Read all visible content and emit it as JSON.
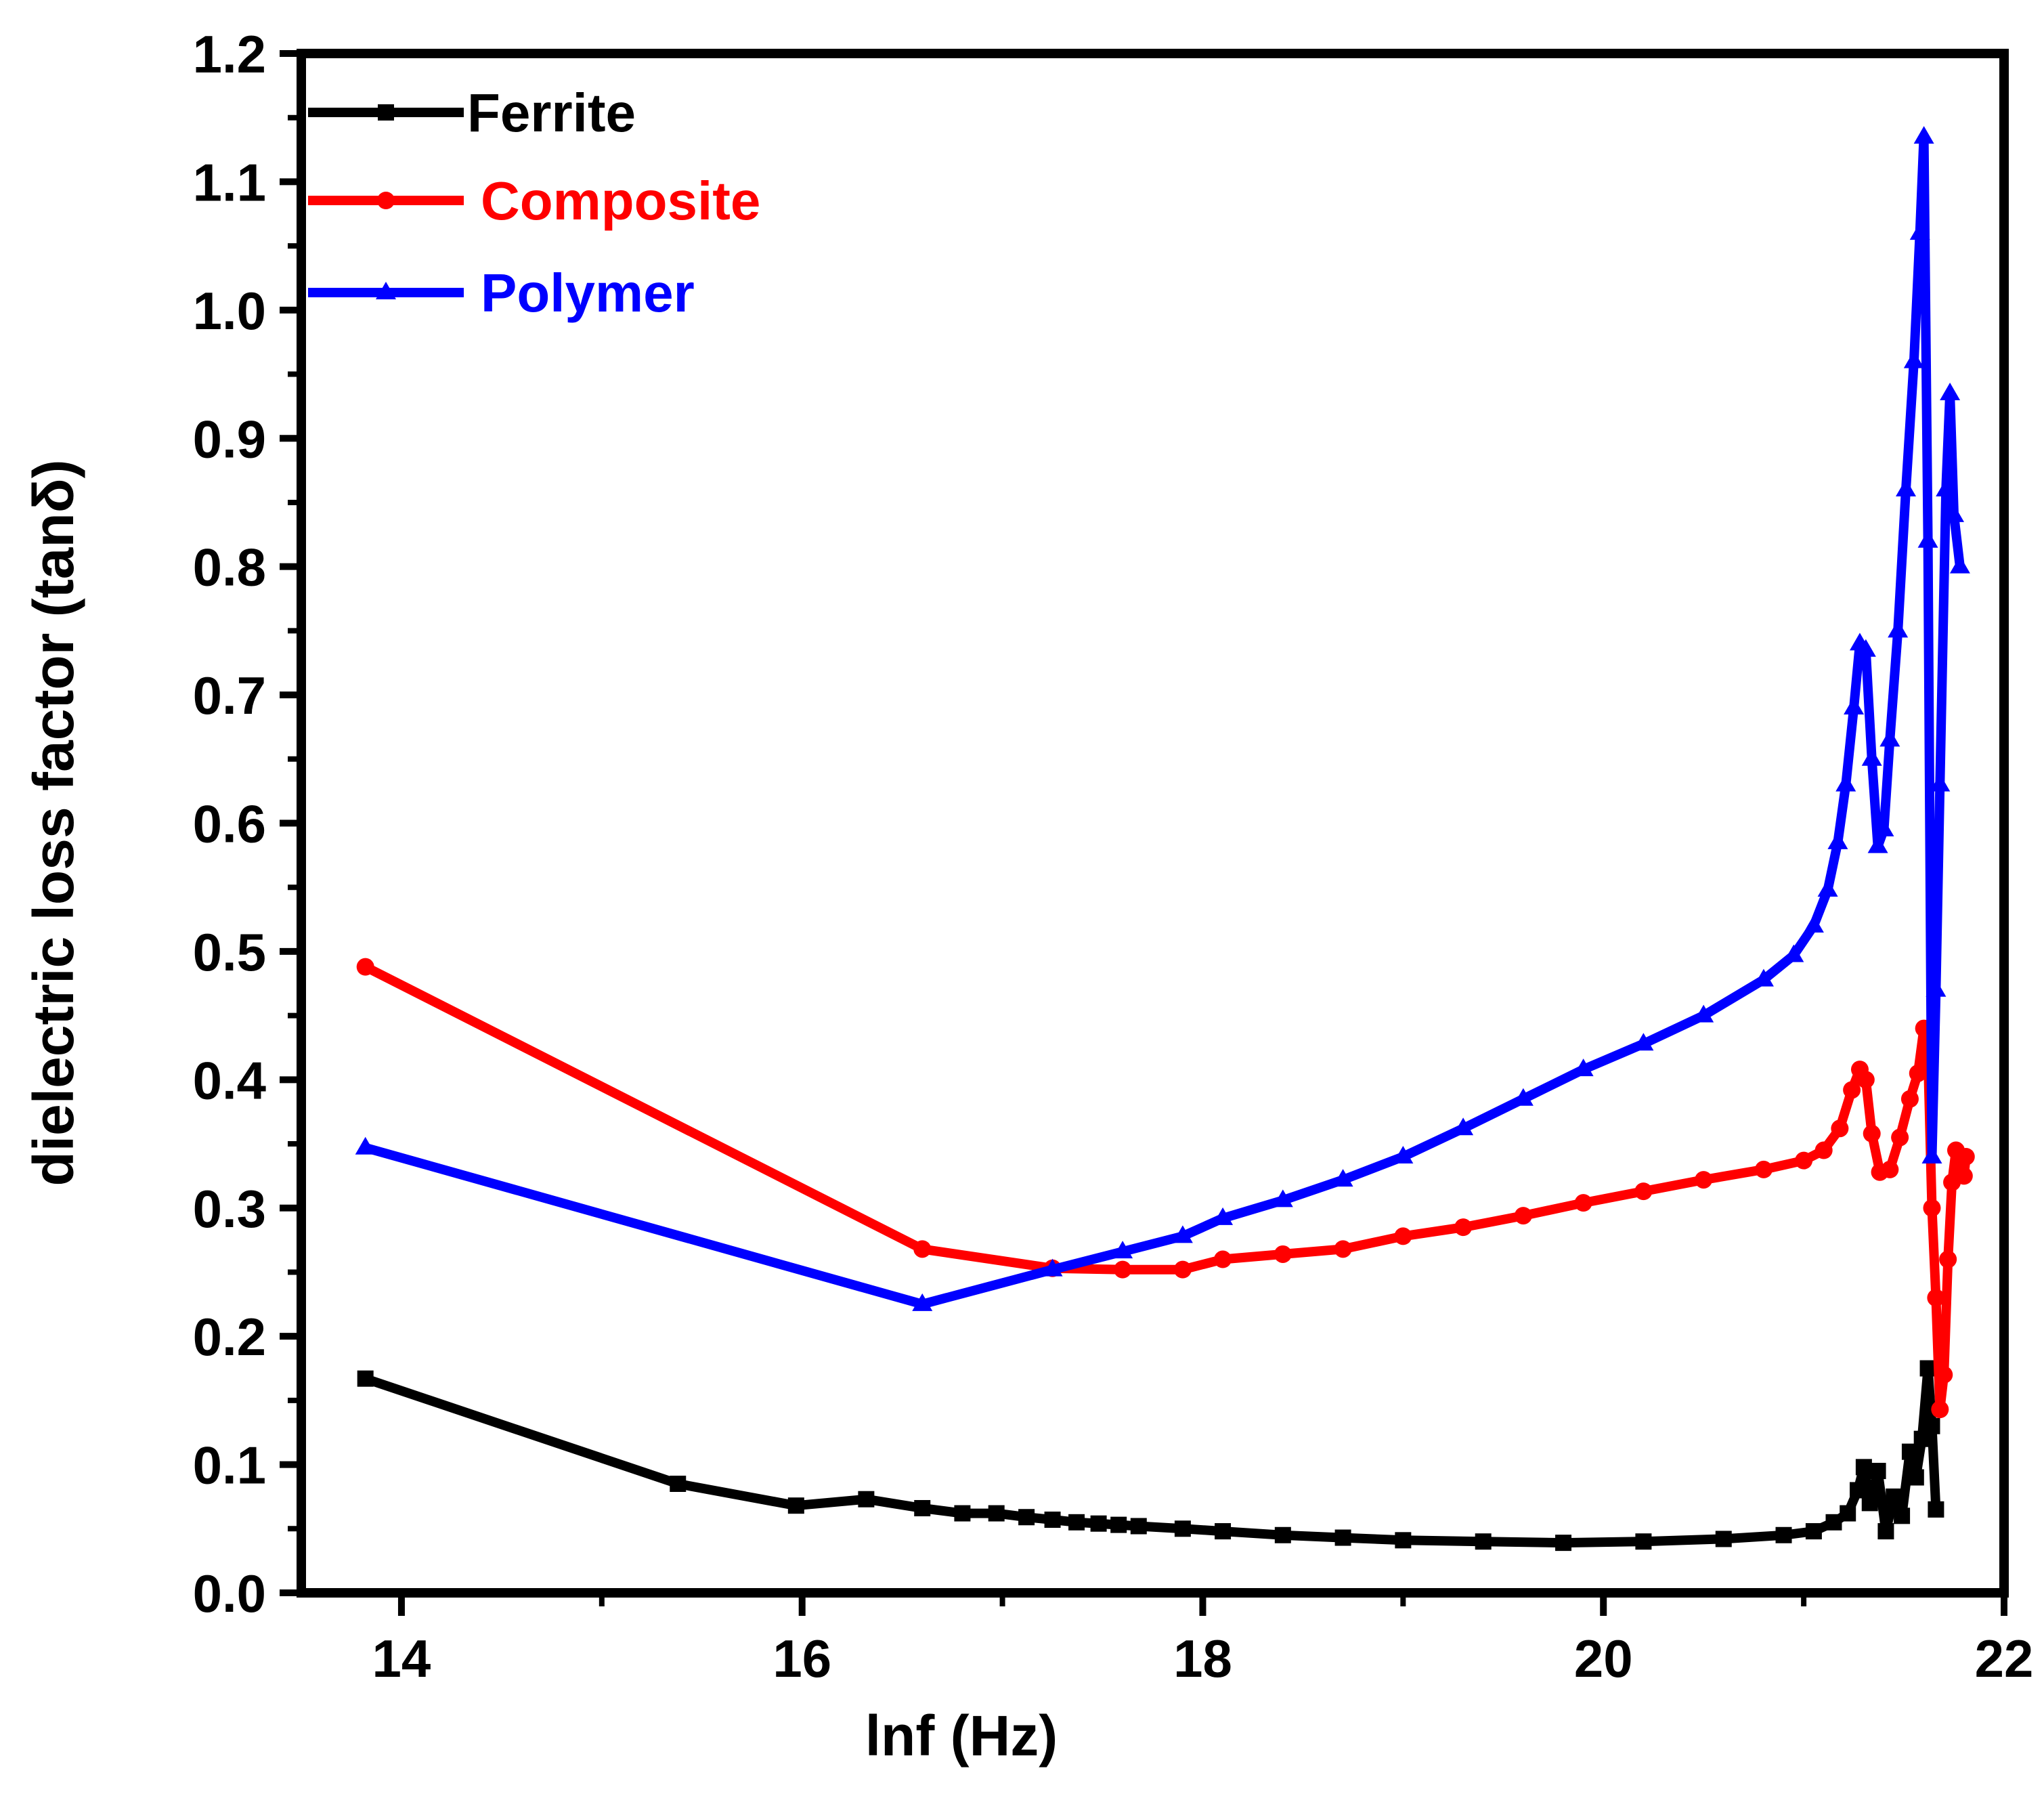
{
  "chart_data": {
    "type": "line",
    "title": "",
    "xlabel": "lnf (Hz)",
    "ylabel": "dielectric loss factor (tanδ)",
    "xlim": [
      13.5,
      22
    ],
    "ylim": [
      0,
      1.2
    ],
    "xticks": [
      "14",
      "16",
      "18",
      "20",
      "22"
    ],
    "yticks": [
      "0.0",
      "0.1",
      "0.2",
      "0.3",
      "0.4",
      "0.5",
      "0.6",
      "0.7",
      "0.8",
      "0.9",
      "1.0",
      "1.1",
      "1.2"
    ],
    "legend_position": "top-left",
    "series": [
      {
        "name": "Ferrite",
        "color": "#000000",
        "marker": "square",
        "points": [
          [
            13.82,
            0.167
          ],
          [
            15.38,
            0.085
          ],
          [
            15.97,
            0.068
          ],
          [
            16.32,
            0.073
          ],
          [
            16.6,
            0.066
          ],
          [
            16.8,
            0.062
          ],
          [
            16.97,
            0.062
          ],
          [
            17.12,
            0.059
          ],
          [
            17.25,
            0.057
          ],
          [
            17.37,
            0.055
          ],
          [
            17.48,
            0.054
          ],
          [
            17.58,
            0.053
          ],
          [
            17.68,
            0.052
          ],
          [
            17.9,
            0.05
          ],
          [
            18.1,
            0.048
          ],
          [
            18.4,
            0.045
          ],
          [
            18.7,
            0.043
          ],
          [
            19.0,
            0.041
          ],
          [
            19.4,
            0.04
          ],
          [
            19.8,
            0.039
          ],
          [
            20.2,
            0.04
          ],
          [
            20.6,
            0.042
          ],
          [
            20.9,
            0.045
          ],
          [
            21.05,
            0.048
          ],
          [
            21.15,
            0.055
          ],
          [
            21.22,
            0.062
          ],
          [
            21.27,
            0.08
          ],
          [
            21.3,
            0.098
          ],
          [
            21.33,
            0.07
          ],
          [
            21.37,
            0.095
          ],
          [
            21.41,
            0.048
          ],
          [
            21.45,
            0.075
          ],
          [
            21.49,
            0.06
          ],
          [
            21.53,
            0.11
          ],
          [
            21.56,
            0.09
          ],
          [
            21.59,
            0.12
          ],
          [
            21.62,
            0.175
          ],
          [
            21.64,
            0.13
          ],
          [
            21.66,
            0.065
          ]
        ]
      },
      {
        "name": "Composite",
        "color": "#ff0000",
        "marker": "circle",
        "points": [
          [
            13.82,
            0.488
          ],
          [
            16.6,
            0.268
          ],
          [
            17.25,
            0.253
          ],
          [
            17.6,
            0.252
          ],
          [
            17.9,
            0.252
          ],
          [
            18.1,
            0.26
          ],
          [
            18.4,
            0.264
          ],
          [
            18.7,
            0.268
          ],
          [
            19.0,
            0.278
          ],
          [
            19.3,
            0.285
          ],
          [
            19.6,
            0.294
          ],
          [
            19.9,
            0.304
          ],
          [
            20.2,
            0.313
          ],
          [
            20.5,
            0.322
          ],
          [
            20.8,
            0.33
          ],
          [
            21.0,
            0.337
          ],
          [
            21.1,
            0.345
          ],
          [
            21.18,
            0.362
          ],
          [
            21.24,
            0.392
          ],
          [
            21.28,
            0.408
          ],
          [
            21.31,
            0.4
          ],
          [
            21.34,
            0.358
          ],
          [
            21.38,
            0.328
          ],
          [
            21.43,
            0.33
          ],
          [
            21.48,
            0.355
          ],
          [
            21.53,
            0.385
          ],
          [
            21.57,
            0.405
          ],
          [
            21.6,
            0.44
          ],
          [
            21.62,
            0.42
          ],
          [
            21.64,
            0.3
          ],
          [
            21.66,
            0.23
          ],
          [
            21.68,
            0.143
          ],
          [
            21.7,
            0.17
          ],
          [
            21.72,
            0.26
          ],
          [
            21.74,
            0.32
          ],
          [
            21.76,
            0.345
          ],
          [
            21.78,
            0.34
          ],
          [
            21.8,
            0.325
          ],
          [
            21.81,
            0.34
          ]
        ]
      },
      {
        "name": "Polymer",
        "color": "#0000ff",
        "marker": "triangle",
        "points": [
          [
            13.82,
            0.347
          ],
          [
            16.6,
            0.225
          ],
          [
            17.25,
            0.252
          ],
          [
            17.6,
            0.266
          ],
          [
            17.9,
            0.278
          ],
          [
            18.1,
            0.292
          ],
          [
            18.4,
            0.306
          ],
          [
            18.7,
            0.322
          ],
          [
            19.0,
            0.34
          ],
          [
            19.3,
            0.362
          ],
          [
            19.6,
            0.385
          ],
          [
            19.9,
            0.408
          ],
          [
            20.2,
            0.428
          ],
          [
            20.5,
            0.45
          ],
          [
            20.8,
            0.478
          ],
          [
            20.95,
            0.497
          ],
          [
            21.05,
            0.52
          ],
          [
            21.12,
            0.548
          ],
          [
            21.17,
            0.585
          ],
          [
            21.21,
            0.63
          ],
          [
            21.25,
            0.69
          ],
          [
            21.28,
            0.74
          ],
          [
            21.31,
            0.735
          ],
          [
            21.34,
            0.65
          ],
          [
            21.37,
            0.582
          ],
          [
            21.4,
            0.595
          ],
          [
            21.43,
            0.665
          ],
          [
            21.47,
            0.75
          ],
          [
            21.51,
            0.86
          ],
          [
            21.55,
            0.96
          ],
          [
            21.58,
            1.06
          ],
          [
            21.6,
            1.135
          ],
          [
            21.62,
            0.82
          ],
          [
            21.64,
            0.34
          ],
          [
            21.66,
            0.47
          ],
          [
            21.68,
            0.63
          ],
          [
            21.71,
            0.86
          ],
          [
            21.73,
            0.935
          ],
          [
            21.75,
            0.84
          ],
          [
            21.78,
            0.8
          ]
        ]
      }
    ]
  }
}
